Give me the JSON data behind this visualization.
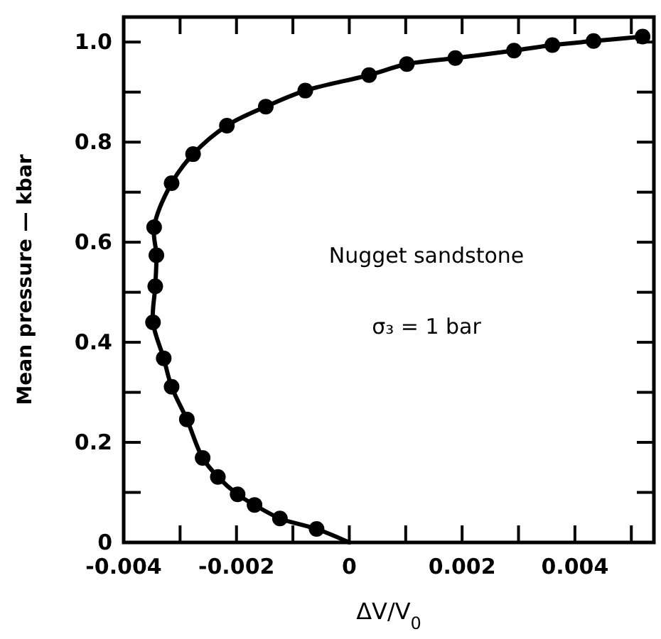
{
  "chart_data": {
    "type": "scatter",
    "xlabel": "ΔV/V$_{0}$",
    "ylabel": "Mean pressure — kbar",
    "annotations": [
      "Nugget sandstone",
      "σ₃ = 1 bar"
    ],
    "xlim": [
      -0.004,
      0.0054
    ],
    "ylim": [
      0,
      1.05
    ],
    "xticks": [
      {
        "value": -0.004,
        "label": "-0.004"
      },
      {
        "value": -0.003,
        "label": null
      },
      {
        "value": -0.002,
        "label": "-0.002"
      },
      {
        "value": -0.001,
        "label": null
      },
      0,
      {
        "value": 0.001,
        "label": null
      },
      {
        "value": 0.002,
        "label": "0.002"
      },
      {
        "value": 0.003,
        "label": null
      },
      {
        "value": 0.004,
        "label": "0.004"
      },
      {
        "value": 0.005,
        "label": null
      }
    ],
    "yticks": [
      0,
      {
        "value": 0.1,
        "label": null
      },
      {
        "value": 0.2,
        "label": "0.2"
      },
      {
        "value": 0.3,
        "label": null
      },
      {
        "value": 0.4,
        "label": "0.4"
      },
      {
        "value": 0.5,
        "label": null
      },
      {
        "value": 0.6,
        "label": "0.6"
      },
      {
        "value": 0.7,
        "label": null
      },
      {
        "value": 0.8,
        "label": "0.8"
      },
      {
        "value": 0.9,
        "label": null
      },
      {
        "value": 1.0,
        "label": "1.0"
      }
    ],
    "grid": false,
    "series": [
      {
        "type": "line",
        "marker": "none",
        "color": "#000000",
        "x": [
          0,
          -0.00058,
          -0.00123,
          -0.00168,
          -0.00198,
          -0.00233,
          -0.0026,
          -0.00288,
          -0.00315,
          -0.00329,
          -0.00348,
          -0.00344,
          -0.00342,
          -0.00346,
          -0.00315,
          -0.00277,
          -0.00217,
          -0.00148,
          -0.00078,
          0.00035,
          0.00102,
          0.00188,
          0.00292,
          0.0036,
          0.00433,
          0.0052
        ],
        "values": [
          0,
          0.027,
          0.048,
          0.075,
          0.096,
          0.131,
          0.169,
          0.246,
          0.311,
          0.368,
          0.44,
          0.512,
          0.574,
          0.63,
          0.718,
          0.776,
          0.833,
          0.871,
          0.903,
          0.934,
          0.956,
          0.968,
          0.983,
          0.994,
          1.002,
          1.011
        ]
      },
      {
        "marker": "circle",
        "color": "#000000",
        "x": [
          -0.00058,
          -0.00123,
          -0.00168,
          -0.00198,
          -0.00233,
          -0.0026,
          -0.00288,
          -0.00315,
          -0.00329,
          -0.00348,
          -0.00344,
          -0.00342,
          -0.00346,
          -0.00315,
          -0.00277,
          -0.00217,
          -0.00148,
          -0.00078,
          0.00035,
          0.00102,
          0.00188,
          0.00292,
          0.0036,
          0.00433,
          0.0052
        ],
        "values": [
          0.027,
          0.048,
          0.075,
          0.096,
          0.131,
          0.169,
          0.246,
          0.311,
          0.368,
          0.44,
          0.512,
          0.574,
          0.63,
          0.718,
          0.776,
          0.833,
          0.871,
          0.903,
          0.934,
          0.956,
          0.968,
          0.983,
          0.994,
          1.002,
          1.011
        ]
      }
    ]
  }
}
